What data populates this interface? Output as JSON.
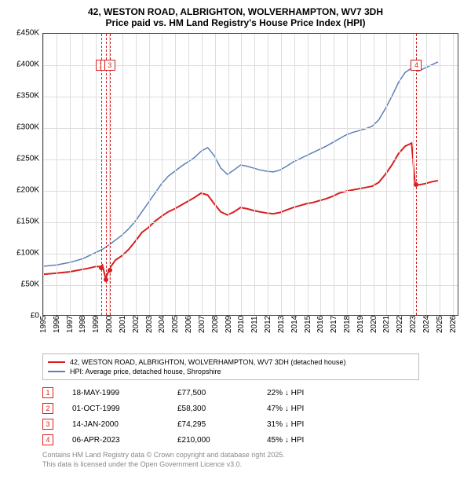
{
  "title_main": "42, WESTON ROAD, ALBRIGHTON, WOLVERHAMPTON, WV7 3DH",
  "title_sub": "Price paid vs. HM Land Registry's House Price Index (HPI)",
  "chart": {
    "type": "line",
    "background_color": "#ffffff",
    "grid_color": "#dddddd",
    "border_color": "#444444",
    "x": {
      "lim": [
        1995,
        2026.5
      ],
      "ticks": [
        1995,
        1996,
        1997,
        1998,
        1999,
        2000,
        2001,
        2002,
        2003,
        2004,
        2005,
        2006,
        2007,
        2008,
        2009,
        2010,
        2011,
        2012,
        2013,
        2014,
        2015,
        2016,
        2017,
        2018,
        2019,
        2020,
        2021,
        2022,
        2023,
        2024,
        2025,
        2026
      ]
    },
    "y": {
      "lim": [
        0,
        450000
      ],
      "ticks": [
        0,
        50000,
        100000,
        150000,
        200000,
        250000,
        300000,
        350000,
        400000,
        450000
      ],
      "tick_labels": [
        "£0",
        "£50K",
        "£100K",
        "£150K",
        "£200K",
        "£250K",
        "£300K",
        "£350K",
        "£400K",
        "£450K"
      ]
    },
    "series": {
      "subject": {
        "color": "#d81e1e",
        "width": 2,
        "label": "42, WESTON ROAD, ALBRIGHTON, WOLVERHAMPTON, WV7 3DH (detached house)",
        "points": [
          [
            1995.0,
            65000
          ],
          [
            1995.5,
            66000
          ],
          [
            1996.0,
            67000
          ],
          [
            1996.5,
            68000
          ],
          [
            1997.0,
            69000
          ],
          [
            1997.5,
            71000
          ],
          [
            1998.0,
            73000
          ],
          [
            1998.5,
            75000
          ],
          [
            1999.0,
            77500
          ],
          [
            1999.38,
            77500
          ],
          [
            1999.5,
            80000
          ],
          [
            1999.75,
            58300
          ],
          [
            2000.04,
            74295
          ],
          [
            2000.5,
            88000
          ],
          [
            2001.0,
            95000
          ],
          [
            2001.5,
            105000
          ],
          [
            2002.0,
            118000
          ],
          [
            2002.5,
            132000
          ],
          [
            2003.0,
            140000
          ],
          [
            2003.5,
            150000
          ],
          [
            2004.0,
            158000
          ],
          [
            2004.5,
            165000
          ],
          [
            2005.0,
            170000
          ],
          [
            2005.5,
            176000
          ],
          [
            2006.0,
            182000
          ],
          [
            2006.5,
            188000
          ],
          [
            2007.0,
            195000
          ],
          [
            2007.5,
            192000
          ],
          [
            2008.0,
            178000
          ],
          [
            2008.5,
            165000
          ],
          [
            2009.0,
            160000
          ],
          [
            2009.5,
            165000
          ],
          [
            2010.0,
            172000
          ],
          [
            2010.5,
            170000
          ],
          [
            2011.0,
            167000
          ],
          [
            2011.5,
            165000
          ],
          [
            2012.0,
            163000
          ],
          [
            2012.5,
            162000
          ],
          [
            2013.0,
            164000
          ],
          [
            2013.5,
            168000
          ],
          [
            2014.0,
            172000
          ],
          [
            2014.5,
            175000
          ],
          [
            2015.0,
            178000
          ],
          [
            2015.5,
            180000
          ],
          [
            2016.0,
            183000
          ],
          [
            2016.5,
            186000
          ],
          [
            2017.0,
            190000
          ],
          [
            2017.5,
            195000
          ],
          [
            2018.0,
            198000
          ],
          [
            2018.5,
            200000
          ],
          [
            2019.0,
            202000
          ],
          [
            2019.5,
            204000
          ],
          [
            2020.0,
            206000
          ],
          [
            2020.5,
            212000
          ],
          [
            2021.0,
            225000
          ],
          [
            2021.5,
            240000
          ],
          [
            2022.0,
            258000
          ],
          [
            2022.5,
            270000
          ],
          [
            2023.0,
            275000
          ],
          [
            2023.26,
            210000
          ],
          [
            2023.5,
            208000
          ],
          [
            2024.0,
            210000
          ],
          [
            2024.5,
            213000
          ],
          [
            2025.0,
            215000
          ]
        ]
      },
      "hpi": {
        "color": "#5b7fb8",
        "width": 1.5,
        "label": "HPI: Average price, detached house, Shropshire",
        "points": [
          [
            1995.0,
            78000
          ],
          [
            1995.5,
            79000
          ],
          [
            1996.0,
            80000
          ],
          [
            1996.5,
            82000
          ],
          [
            1997.0,
            84000
          ],
          [
            1997.5,
            87000
          ],
          [
            1998.0,
            90000
          ],
          [
            1998.5,
            95000
          ],
          [
            1999.0,
            100000
          ],
          [
            1999.5,
            105000
          ],
          [
            2000.0,
            112000
          ],
          [
            2000.5,
            120000
          ],
          [
            2001.0,
            128000
          ],
          [
            2001.5,
            138000
          ],
          [
            2002.0,
            150000
          ],
          [
            2002.5,
            165000
          ],
          [
            2003.0,
            180000
          ],
          [
            2003.5,
            195000
          ],
          [
            2004.0,
            210000
          ],
          [
            2004.5,
            222000
          ],
          [
            2005.0,
            230000
          ],
          [
            2005.5,
            238000
          ],
          [
            2006.0,
            245000
          ],
          [
            2006.5,
            252000
          ],
          [
            2007.0,
            262000
          ],
          [
            2007.5,
            268000
          ],
          [
            2008.0,
            255000
          ],
          [
            2008.5,
            235000
          ],
          [
            2009.0,
            225000
          ],
          [
            2009.5,
            232000
          ],
          [
            2010.0,
            240000
          ],
          [
            2010.5,
            238000
          ],
          [
            2011.0,
            235000
          ],
          [
            2011.5,
            232000
          ],
          [
            2012.0,
            230000
          ],
          [
            2012.5,
            229000
          ],
          [
            2013.0,
            232000
          ],
          [
            2013.5,
            238000
          ],
          [
            2014.0,
            245000
          ],
          [
            2014.5,
            250000
          ],
          [
            2015.0,
            255000
          ],
          [
            2015.5,
            260000
          ],
          [
            2016.0,
            265000
          ],
          [
            2016.5,
            270000
          ],
          [
            2017.0,
            276000
          ],
          [
            2017.5,
            282000
          ],
          [
            2018.0,
            288000
          ],
          [
            2018.5,
            292000
          ],
          [
            2019.0,
            295000
          ],
          [
            2019.5,
            298000
          ],
          [
            2020.0,
            302000
          ],
          [
            2020.5,
            312000
          ],
          [
            2021.0,
            330000
          ],
          [
            2021.5,
            350000
          ],
          [
            2022.0,
            372000
          ],
          [
            2022.5,
            388000
          ],
          [
            2023.0,
            395000
          ],
          [
            2023.5,
            390000
          ],
          [
            2024.0,
            395000
          ],
          [
            2024.5,
            400000
          ],
          [
            2025.0,
            405000
          ]
        ]
      }
    },
    "markers": [
      {
        "n": "1",
        "x": 1999.38,
        "y": 77500
      },
      {
        "n": "2",
        "x": 1999.75,
        "y": 58300
      },
      {
        "n": "3",
        "x": 2000.04,
        "y": 74295
      },
      {
        "n": "4",
        "x": 2023.26,
        "y": 210000
      }
    ]
  },
  "legend": {
    "rows": [
      {
        "color": "#d81e1e",
        "label_key": "chart.series.subject.label"
      },
      {
        "color": "#5b7fb8",
        "label_key": "chart.series.hpi.label"
      }
    ]
  },
  "sales": [
    {
      "n": "1",
      "date": "18-MAY-1999",
      "price": "£77,500",
      "delta": "22% ↓ HPI"
    },
    {
      "n": "2",
      "date": "01-OCT-1999",
      "price": "£58,300",
      "delta": "47% ↓ HPI"
    },
    {
      "n": "3",
      "date": "14-JAN-2000",
      "price": "£74,295",
      "delta": "31% ↓ HPI"
    },
    {
      "n": "4",
      "date": "06-APR-2023",
      "price": "£210,000",
      "delta": "45% ↓ HPI"
    }
  ],
  "footer": {
    "l1": "Contains HM Land Registry data © Crown copyright and database right 2025.",
    "l2": "This data is licensed under the Open Government Licence v3.0."
  }
}
